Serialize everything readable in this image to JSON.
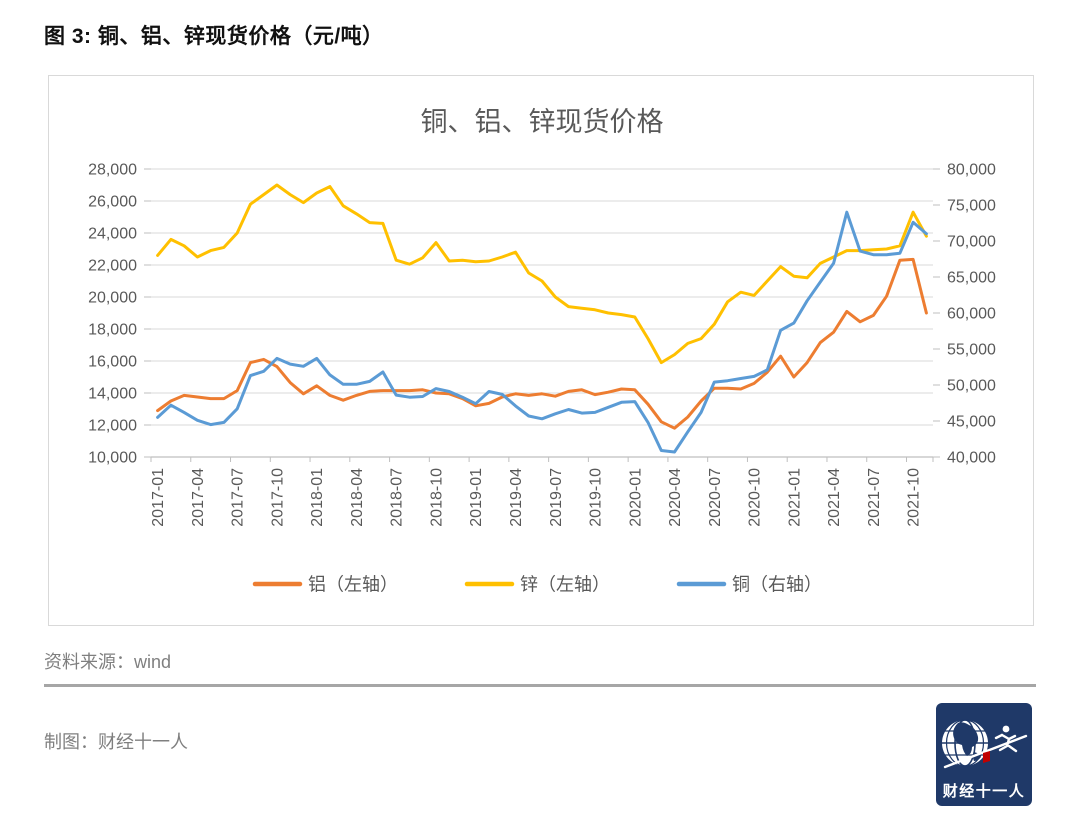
{
  "page": {
    "figure_title": "图 3: 铜、铝、锌现货价格（元/吨）",
    "source_label": "资料来源：wind",
    "credit_label": "制图：财经十一人",
    "logo_text": "财经十一人",
    "logo_bg_color": "#1f3968",
    "logo_accent_color": "#c00000"
  },
  "chart_data": {
    "type": "line",
    "title": "铜、铝、锌现货价格",
    "grid": true,
    "legend_position": "bottom",
    "x_tick_every": 3,
    "x": [
      "2017-01",
      "2017-02",
      "2017-03",
      "2017-04",
      "2017-05",
      "2017-06",
      "2017-07",
      "2017-08",
      "2017-09",
      "2017-10",
      "2017-11",
      "2017-12",
      "2018-01",
      "2018-02",
      "2018-03",
      "2018-04",
      "2018-05",
      "2018-06",
      "2018-07",
      "2018-08",
      "2018-09",
      "2018-10",
      "2018-11",
      "2018-12",
      "2019-01",
      "2019-02",
      "2019-03",
      "2019-04",
      "2019-05",
      "2019-06",
      "2019-07",
      "2019-08",
      "2019-09",
      "2019-10",
      "2019-11",
      "2019-12",
      "2020-01",
      "2020-02",
      "2020-03",
      "2020-04",
      "2020-05",
      "2020-06",
      "2020-07",
      "2020-08",
      "2020-09",
      "2020-10",
      "2020-11",
      "2020-12",
      "2021-01",
      "2021-02",
      "2021-03",
      "2021-04",
      "2021-05",
      "2021-06",
      "2021-07",
      "2021-08",
      "2021-09",
      "2021-10",
      "2021-11"
    ],
    "left_axis": {
      "min": 10000,
      "max": 28000,
      "step": 2000,
      "ticks": [
        28000,
        26000,
        24000,
        22000,
        20000,
        18000,
        16000,
        14000,
        12000,
        10000
      ]
    },
    "right_axis": {
      "min": 40000,
      "max": 80000,
      "step": 5000,
      "ticks": [
        80000,
        75000,
        70000,
        65000,
        60000,
        55000,
        50000,
        45000,
        40000
      ]
    },
    "series": [
      {
        "name": "铝（左轴）",
        "id": "aluminum",
        "axis": "left",
        "color": "#ED7D31",
        "values": [
          12900,
          13500,
          13850,
          13750,
          13650,
          13650,
          14150,
          15900,
          16100,
          15650,
          14650,
          13950,
          14450,
          13850,
          13550,
          13850,
          14100,
          14150,
          14150,
          14150,
          14200,
          14000,
          13950,
          13650,
          13200,
          13350,
          13750,
          13950,
          13850,
          13950,
          13800,
          14100,
          14200,
          13900,
          14050,
          14250,
          14200,
          13300,
          12200,
          11800,
          12500,
          13500,
          14300,
          14300,
          14250,
          14600,
          15300,
          16300,
          15000,
          15900,
          17150,
          17800,
          19100,
          18450,
          18850,
          20050,
          22300,
          22350,
          19000
        ]
      },
      {
        "name": "锌（左轴）",
        "id": "zinc",
        "axis": "left",
        "color": "#FFC000",
        "values": [
          22600,
          23600,
          23200,
          22500,
          22900,
          23100,
          24000,
          25800,
          26400,
          27000,
          26400,
          25900,
          26500,
          26900,
          25700,
          25200,
          24650,
          24600,
          22300,
          22050,
          22450,
          23400,
          22250,
          22300,
          22200,
          22250,
          22500,
          22800,
          21500,
          21000,
          20000,
          19400,
          19300,
          19200,
          19000,
          18900,
          18750,
          17400,
          15900,
          16400,
          17100,
          17400,
          18300,
          19700,
          20300,
          20100,
          21000,
          21900,
          21300,
          21200,
          22100,
          22500,
          22900,
          22900,
          22950,
          23000,
          23200,
          25300,
          23800
        ]
      },
      {
        "name": "铜（右轴）",
        "id": "copper",
        "axis": "right",
        "color": "#5B9BD5",
        "values": [
          45500,
          47200,
          46200,
          45100,
          44500,
          44800,
          46700,
          51300,
          51900,
          53700,
          52900,
          52600,
          53700,
          51400,
          50100,
          50100,
          50500,
          51800,
          48600,
          48300,
          48400,
          49500,
          49100,
          48300,
          47400,
          49100,
          48700,
          47100,
          45700,
          45300,
          46000,
          46600,
          46100,
          46200,
          46900,
          47600,
          47700,
          44800,
          40900,
          40700,
          43500,
          46200,
          50400,
          50600,
          50900,
          51200,
          52100,
          57600,
          58600,
          61700,
          64300,
          66900,
          74000,
          68600,
          68100,
          68100,
          68300,
          72600,
          71000
        ]
      }
    ],
    "style": {
      "grid_color": "#d9d9d9",
      "axis_color": "#bfbfbf",
      "text_color": "#595959",
      "title_color": "#595959"
    }
  }
}
